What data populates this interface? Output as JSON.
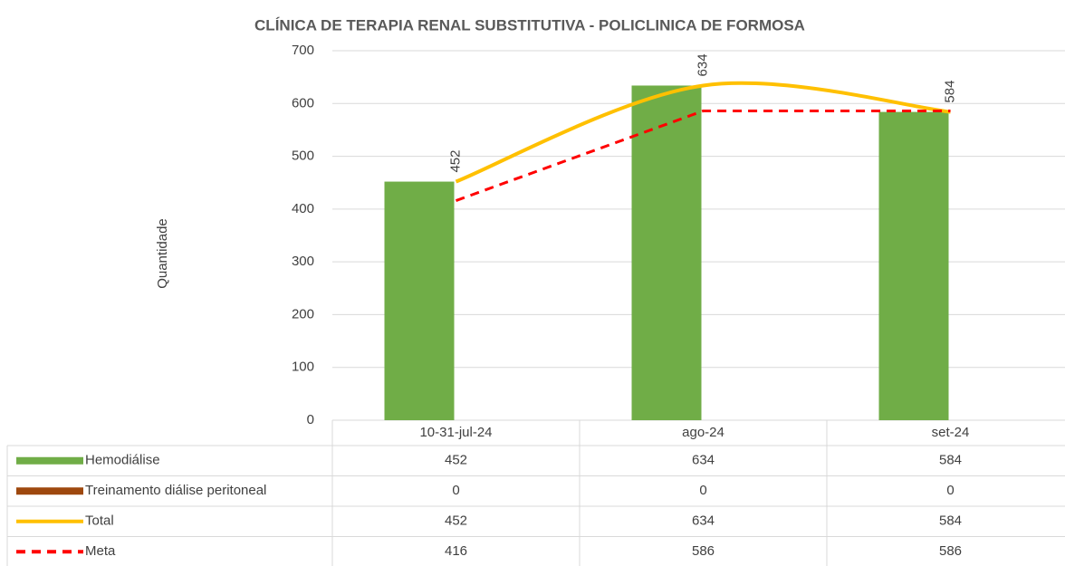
{
  "chart_data": {
    "type": "bar",
    "title": "CLÍNICA DE TERAPIA RENAL SUBSTITUTIVA - POLICLINICA DE FORMOSA",
    "y_label": "Quantidade",
    "categories": [
      "10-31-jul-24",
      "ago-24",
      "set-24"
    ],
    "series": [
      {
        "name": "Hemodiálise",
        "type": "bar",
        "color": "#70ad47",
        "values": [
          452,
          634,
          584
        ]
      },
      {
        "name": "Treinamento diálise peritoneal",
        "type": "bar",
        "color": "#9e480e",
        "values": [
          0,
          0,
          0
        ]
      },
      {
        "name": "Total",
        "type": "line",
        "smooth": true,
        "color": "#ffc000",
        "values": [
          452,
          634,
          584
        ]
      },
      {
        "name": "Meta",
        "type": "line",
        "dashed": true,
        "color": "#ff0000",
        "values": [
          416,
          586,
          586
        ]
      }
    ],
    "ylim": [
      0,
      700
    ],
    "yticks": [
      0,
      100,
      200,
      300,
      400,
      500,
      600,
      700
    ],
    "grid": true,
    "data_table": true
  }
}
